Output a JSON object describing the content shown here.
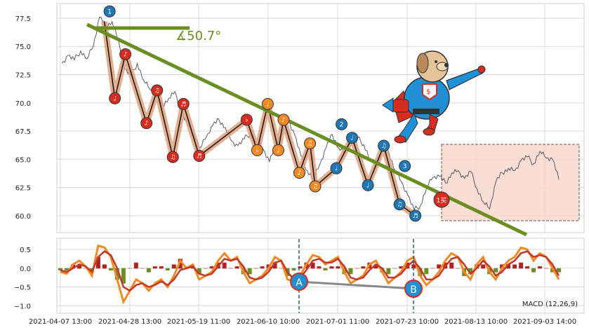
{
  "chart_data": [
    {
      "type": "line",
      "name_hidden": "",
      "ylim": [
        58.5,
        78.8
      ],
      "y_ticks": [
        "77.5",
        "75.0",
        "72.5",
        "70.0",
        "67.5",
        "65.0",
        "62.5",
        "60.0"
      ],
      "y_tick_values": [
        77.5,
        75.0,
        72.5,
        70.0,
        67.5,
        65.0,
        62.5,
        60.0
      ],
      "x_ticks": [
        "2021-04-07 13:00",
        "2021-04-28 13:00",
        "2021-05-19 11:00",
        "2021-06-10 10:00",
        "2021-07-01 11:00",
        "2021-07-23 10:00",
        "2021-08-13 10:00",
        "2021-09-03 14:00"
      ],
      "grid": true,
      "price_series": [
        73.5,
        74.2,
        73.8,
        74.6,
        73.9,
        75.0,
        77.6,
        76.8,
        77.2,
        75.5,
        73.0,
        72.4,
        73.5,
        72.0,
        71.2,
        70.5,
        69.8,
        70.4,
        71.0,
        69.2,
        68.0,
        67.2,
        66.0,
        67.0,
        68.0,
        68.5,
        67.8,
        66.6,
        66.2,
        66.8,
        67.3,
        66.5,
        65.9,
        64.8,
        66.2,
        67.5,
        68.5,
        67.2,
        65.3,
        64.0,
        63.2,
        64.5,
        66.0,
        67.2,
        66.0,
        65.6,
        66.5,
        66.9,
        66.3,
        65.0,
        64.5,
        65.8,
        65.6,
        64.0,
        63.0,
        61.8,
        60.5,
        60.9,
        62.5,
        63.4,
        63.5,
        62.9,
        63.8,
        64.0,
        63.3,
        63.9,
        62.4,
        61.2,
        60.6,
        63.0,
        63.8,
        64.2,
        64.0,
        64.9,
        65.2,
        64.6,
        65.7,
        65.1,
        65.0,
        63.2
      ],
      "wave_points": [
        {
          "label": "♩",
          "x": 0.09,
          "y": 77.2,
          "kind": "start"
        },
        {
          "label": "♩",
          "x": 0.11,
          "y": 70.4
        },
        {
          "label": "♪",
          "x": 0.13,
          "y": 74.3
        },
        {
          "label": "♪",
          "x": 0.17,
          "y": 68.2
        },
        {
          "label": "♫",
          "x": 0.19,
          "y": 71.1
        },
        {
          "label": "♫",
          "x": 0.22,
          "y": 65.2
        },
        {
          "label": "♬",
          "x": 0.24,
          "y": 69.9
        },
        {
          "label": "♬",
          "x": 0.27,
          "y": 65.3
        },
        {
          "label": "♭",
          "x": 0.36,
          "y": 68.5
        },
        {
          "label": "♭",
          "x": 0.38,
          "y": 65.8
        },
        {
          "label": "♩",
          "x": 0.4,
          "y": 69.9
        },
        {
          "label": "♩",
          "x": 0.42,
          "y": 65.8
        },
        {
          "label": "♪",
          "x": 0.43,
          "y": 68.5
        },
        {
          "label": "♪",
          "x": 0.46,
          "y": 63.8
        },
        {
          "label": "♫",
          "x": 0.48,
          "y": 66.4
        },
        {
          "label": "♫",
          "x": 0.49,
          "y": 62.6
        },
        {
          "label": "♩",
          "x": 0.53,
          "y": 64.2
        },
        {
          "label": "♩",
          "x": 0.56,
          "y": 66.9
        },
        {
          "label": "♩",
          "x": 0.59,
          "y": 62.7
        },
        {
          "label": "♫",
          "x": 0.62,
          "y": 66.2
        },
        {
          "label": "♫",
          "x": 0.65,
          "y": 61.0
        },
        {
          "label": "♬",
          "x": 0.68,
          "y": 60.0
        }
      ],
      "numbered_markers": [
        {
          "label": "1",
          "x": 0.1,
          "y": 78.1
        },
        {
          "label": "2",
          "x": 0.54,
          "y": 68.1
        },
        {
          "label": "3",
          "x": 0.66,
          "y": 64.4
        }
      ],
      "buy_marker": {
        "label": "1买"
      },
      "trend_angle": "∡50.7°"
    },
    {
      "type": "line",
      "ylim": [
        -1.2,
        0.8
      ],
      "y_ticks": [
        "0.5",
        "0.0",
        "−0.5",
        "−1.0"
      ],
      "y_tick_values": [
        0.5,
        0.0,
        -0.5,
        -1.0
      ],
      "legend_text": "MACD (12,26,9)",
      "divergence_points": [
        {
          "label": "A"
        },
        {
          "label": "B"
        }
      ],
      "dif": [
        -0.1,
        -0.15,
        0.1,
        0.2,
        0.05,
        -0.2,
        0.6,
        0.55,
        0.3,
        -0.3,
        -0.9,
        -0.6,
        -0.3,
        -0.4,
        -0.6,
        -0.4,
        -0.3,
        -0.5,
        -0.2,
        0.2,
        0.0,
        0.1,
        -0.3,
        -0.2,
        -0.1,
        0.2,
        0.4,
        0.2,
        0.3,
        -0.1,
        -0.4,
        -0.3,
        -0.2,
        0.0,
        0.3,
        0.2,
        -0.3,
        -0.35,
        -0.2,
        0.1,
        0.35,
        0.3,
        0.1,
        0.2,
        0.3,
        -0.1,
        -0.4,
        -0.3,
        -0.2,
        0.1,
        0.2,
        -0.1,
        -0.4,
        -0.25,
        -0.1,
        0.2,
        0.3,
        -0.2,
        -0.45,
        -0.3,
        -0.1,
        0.2,
        0.4,
        0.3,
        -0.1,
        -0.3,
        0.1,
        0.3,
        -0.1,
        -0.3,
        0.0,
        0.2,
        0.3,
        0.55,
        0.5,
        0.2,
        0.4,
        0.3,
        0.0,
        -0.3
      ],
      "dea": [
        -0.05,
        -0.1,
        0.0,
        0.1,
        0.05,
        -0.1,
        0.3,
        0.45,
        0.35,
        0.0,
        -0.5,
        -0.6,
        -0.45,
        -0.4,
        -0.5,
        -0.45,
        -0.35,
        -0.45,
        -0.3,
        -0.05,
        0.0,
        0.05,
        -0.15,
        -0.2,
        -0.15,
        0.05,
        0.25,
        0.2,
        0.25,
        0.05,
        -0.25,
        -0.3,
        -0.25,
        -0.1,
        0.15,
        0.2,
        -0.1,
        -0.3,
        -0.25,
        -0.05,
        0.2,
        0.25,
        0.15,
        0.15,
        0.25,
        0.05,
        -0.25,
        -0.3,
        -0.25,
        -0.05,
        0.1,
        0.0,
        -0.25,
        -0.25,
        -0.15,
        0.05,
        0.2,
        0.0,
        -0.3,
        -0.3,
        -0.2,
        0.05,
        0.25,
        0.3,
        0.1,
        -0.15,
        0.0,
        0.2,
        0.05,
        -0.2,
        -0.1,
        0.1,
        0.2,
        0.4,
        0.45,
        0.3,
        0.35,
        0.3,
        0.1,
        -0.2
      ]
    }
  ],
  "colors": {
    "trend": "#6b8e23",
    "price": "#4a4a5a",
    "wave_fill": "#e0a07a",
    "wave_line": "#1a1a1a",
    "marker_red": "#d62d20",
    "marker_orange": "#f08a24",
    "marker_blue": "#1f77b4",
    "buy_marker": "#d62d20",
    "box_fill": "#f9d8cc",
    "dif": "#f08a24",
    "dea": "#c0392b",
    "hist_pos": "#b22222",
    "hist_neg": "#6b8e23",
    "grid": "#d8d8d8"
  }
}
